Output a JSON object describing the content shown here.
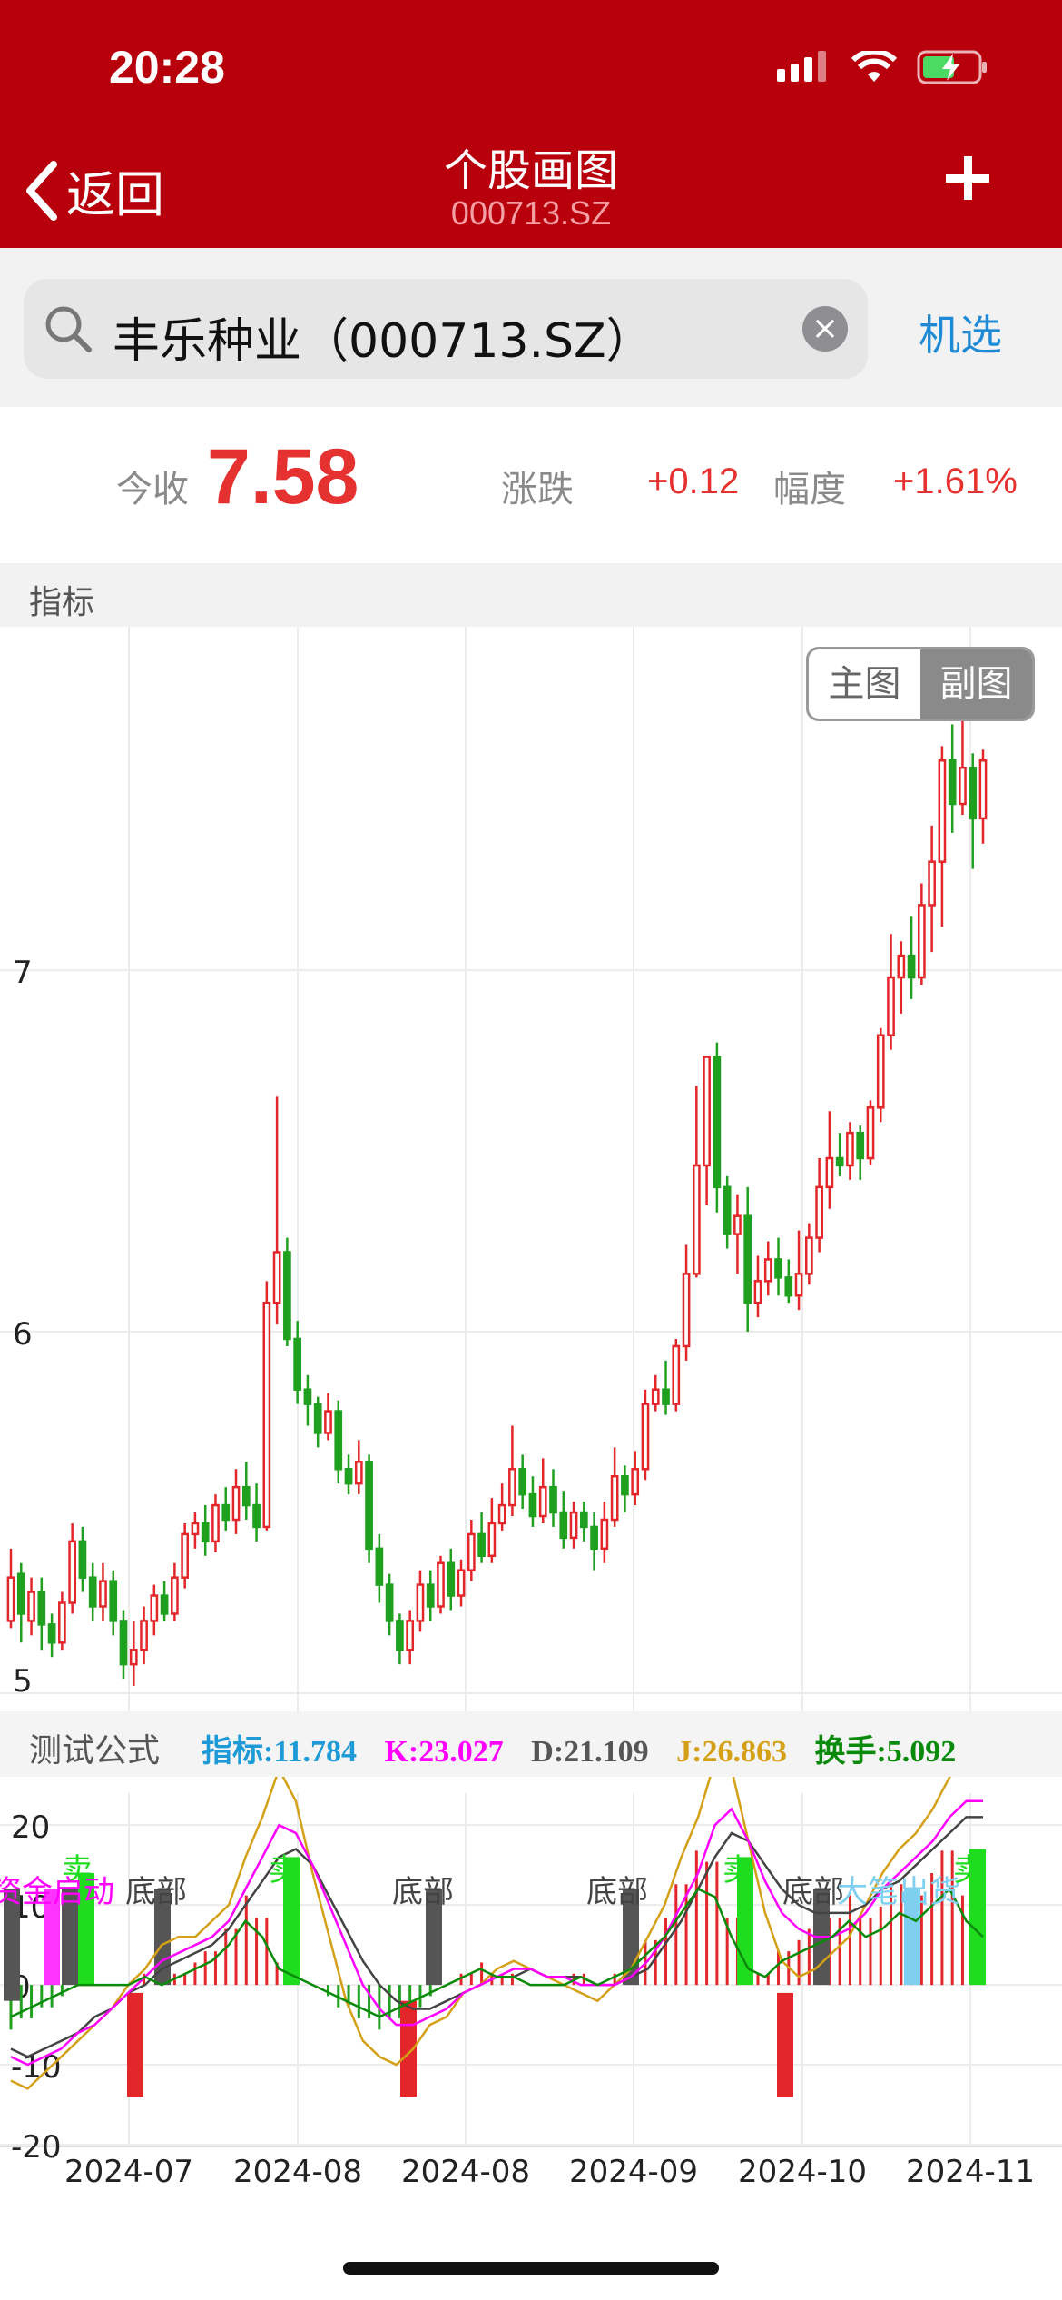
{
  "status": {
    "time": "20:28"
  },
  "nav": {
    "back_label": "返回",
    "title": "个股画图",
    "subtitle": "000713.SZ"
  },
  "search": {
    "value": "丰乐种业（000713.SZ）",
    "clear_icon": "clear-icon",
    "machine_select": "机选"
  },
  "quote": {
    "close_label": "今收",
    "close_value": "7.58",
    "change_label": "涨跌",
    "change_value": "+0.12",
    "pct_label": "幅度",
    "pct_value": "+1.61%"
  },
  "section": {
    "label": "指标"
  },
  "chart_toggle": {
    "main": "主图",
    "sub": "副图"
  },
  "indicator": {
    "title": "测试公式",
    "values": [
      {
        "text": "指标:11.784",
        "color": "#1e9ad6"
      },
      {
        "text": "K:23.027",
        "color": "#ff00ff"
      },
      {
        "text": "D:21.109",
        "color": "#555555"
      },
      {
        "text": "J:26.863",
        "color": "#d4a017"
      },
      {
        "text": "换手:5.092",
        "color": "#0a8a0a"
      }
    ]
  },
  "colors": {
    "up": "#e3262a",
    "down": "#1fa01f",
    "header": "#b8000c"
  },
  "chart_data": [
    {
      "type": "candlestick",
      "y_ticks": [
        "7",
        "6",
        "5"
      ],
      "ylim": [
        5,
        7.95
      ],
      "x_ticks": [
        "2024-07",
        "2024-08",
        "2024-08",
        "2024-09",
        "2024-10",
        "2024-11"
      ],
      "candles": [
        [
          5.2,
          5.32,
          5.4,
          5.18
        ],
        [
          5.33,
          5.22,
          5.36,
          5.14
        ],
        [
          5.2,
          5.28,
          5.32,
          5.16
        ],
        [
          5.28,
          5.19,
          5.32,
          5.12
        ],
        [
          5.19,
          5.14,
          5.22,
          5.1
        ],
        [
          5.14,
          5.25,
          5.28,
          5.12
        ],
        [
          5.25,
          5.42,
          5.47,
          5.22
        ],
        [
          5.42,
          5.32,
          5.46,
          5.28
        ],
        [
          5.32,
          5.24,
          5.36,
          5.2
        ],
        [
          5.24,
          5.31,
          5.36,
          5.2
        ],
        [
          5.31,
          5.2,
          5.34,
          5.16
        ],
        [
          5.2,
          5.08,
          5.23,
          5.04
        ],
        [
          5.08,
          5.12,
          5.2,
          5.02
        ],
        [
          5.12,
          5.2,
          5.24,
          5.08
        ],
        [
          5.2,
          5.27,
          5.3,
          5.16
        ],
        [
          5.27,
          5.22,
          5.31,
          5.2
        ],
        [
          5.22,
          5.32,
          5.36,
          5.2
        ],
        [
          5.32,
          5.44,
          5.47,
          5.29
        ],
        [
          5.44,
          5.47,
          5.5,
          5.4
        ],
        [
          5.47,
          5.42,
          5.52,
          5.38
        ],
        [
          5.42,
          5.52,
          5.55,
          5.39
        ],
        [
          5.52,
          5.48,
          5.57,
          5.45
        ],
        [
          5.48,
          5.57,
          5.62,
          5.44
        ],
        [
          5.57,
          5.52,
          5.64,
          5.48
        ],
        [
          5.52,
          5.46,
          5.58,
          5.42
        ],
        [
          5.46,
          6.08,
          6.14,
          5.45
        ],
        [
          6.08,
          6.22,
          6.65,
          6.02
        ],
        [
          6.22,
          5.98,
          6.26,
          5.96
        ],
        [
          5.98,
          5.84,
          6.03,
          5.8
        ],
        [
          5.84,
          5.8,
          5.88,
          5.74
        ],
        [
          5.8,
          5.72,
          5.82,
          5.68
        ],
        [
          5.72,
          5.78,
          5.83,
          5.7
        ],
        [
          5.78,
          5.62,
          5.81,
          5.58
        ],
        [
          5.62,
          5.58,
          5.66,
          5.55
        ],
        [
          5.58,
          5.64,
          5.7,
          5.55
        ],
        [
          5.64,
          5.4,
          5.66,
          5.36
        ],
        [
          5.4,
          5.3,
          5.44,
          5.25
        ],
        [
          5.3,
          5.2,
          5.33,
          5.16
        ],
        [
          5.2,
          5.12,
          5.22,
          5.08
        ],
        [
          5.12,
          5.2,
          5.23,
          5.08
        ],
        [
          5.2,
          5.3,
          5.34,
          5.17
        ],
        [
          5.3,
          5.24,
          5.34,
          5.2
        ],
        [
          5.24,
          5.36,
          5.38,
          5.22
        ],
        [
          5.36,
          5.27,
          5.4,
          5.23
        ],
        [
          5.27,
          5.34,
          5.37,
          5.24
        ],
        [
          5.34,
          5.44,
          5.48,
          5.31
        ],
        [
          5.44,
          5.38,
          5.5,
          5.36
        ],
        [
          5.38,
          5.47,
          5.54,
          5.36
        ],
        [
          5.47,
          5.52,
          5.58,
          5.45
        ],
        [
          5.52,
          5.62,
          5.74,
          5.49
        ],
        [
          5.62,
          5.55,
          5.66,
          5.51
        ],
        [
          5.55,
          5.49,
          5.6,
          5.46
        ],
        [
          5.49,
          5.57,
          5.65,
          5.47
        ],
        [
          5.57,
          5.5,
          5.62,
          5.46
        ],
        [
          5.5,
          5.43,
          5.56,
          5.4
        ],
        [
          5.43,
          5.5,
          5.53,
          5.4
        ],
        [
          5.5,
          5.46,
          5.53,
          5.42
        ],
        [
          5.46,
          5.4,
          5.5,
          5.34
        ],
        [
          5.4,
          5.48,
          5.53,
          5.36
        ],
        [
          5.48,
          5.6,
          5.68,
          5.46
        ],
        [
          5.6,
          5.55,
          5.63,
          5.5
        ],
        [
          5.55,
          5.62,
          5.67,
          5.52
        ],
        [
          5.62,
          5.8,
          5.84,
          5.59
        ],
        [
          5.8,
          5.84,
          5.88,
          5.78
        ],
        [
          5.84,
          5.8,
          5.92,
          5.77
        ],
        [
          5.8,
          5.96,
          5.98,
          5.78
        ],
        [
          5.96,
          6.16,
          6.24,
          5.92
        ],
        [
          6.16,
          6.46,
          6.68,
          6.15
        ],
        [
          6.46,
          6.76,
          6.76,
          6.35
        ],
        [
          6.76,
          6.4,
          6.8,
          6.33
        ],
        [
          6.4,
          6.27,
          6.43,
          6.23
        ],
        [
          6.27,
          6.32,
          6.38,
          6.16
        ],
        [
          6.32,
          6.08,
          6.4,
          6.0
        ],
        [
          6.08,
          6.14,
          6.21,
          6.04
        ],
        [
          6.14,
          6.2,
          6.25,
          6.1
        ],
        [
          6.2,
          6.15,
          6.26,
          6.1
        ],
        [
          6.15,
          6.1,
          6.2,
          6.08
        ],
        [
          6.1,
          6.16,
          6.28,
          6.06
        ],
        [
          6.16,
          6.26,
          6.3,
          6.13
        ],
        [
          6.26,
          6.4,
          6.48,
          6.22
        ],
        [
          6.4,
          6.48,
          6.61,
          6.34
        ],
        [
          6.48,
          6.46,
          6.55,
          6.43
        ],
        [
          6.46,
          6.55,
          6.58,
          6.42
        ],
        [
          6.55,
          6.48,
          6.57,
          6.42
        ],
        [
          6.48,
          6.62,
          6.64,
          6.46
        ],
        [
          6.62,
          6.82,
          6.84,
          6.58
        ],
        [
          6.82,
          6.98,
          7.1,
          6.78
        ],
        [
          6.98,
          7.04,
          7.08,
          6.88
        ],
        [
          7.04,
          6.98,
          7.15,
          6.92
        ],
        [
          6.98,
          7.18,
          7.24,
          6.96
        ],
        [
          7.18,
          7.3,
          7.4,
          7.05
        ],
        [
          7.3,
          7.58,
          7.62,
          7.12
        ],
        [
          7.58,
          7.46,
          7.68,
          7.38
        ],
        [
          7.46,
          7.56,
          7.78,
          7.43
        ],
        [
          7.56,
          7.42,
          7.6,
          7.28
        ],
        [
          7.42,
          7.58,
          7.61,
          7.35
        ]
      ]
    },
    {
      "type": "indicator",
      "title": "测试公式",
      "y_ticks": [
        "20",
        "10",
        "0",
        "-10",
        "-20"
      ],
      "ylim": [
        -20,
        24
      ],
      "labels": [
        {
          "text": "卖",
          "pos": 0.07,
          "color": "#1fdc1f"
        },
        {
          "text": "资金启动",
          "pos": 0.0,
          "color": "#ff00ff"
        },
        {
          "text": "底部",
          "pos": 0.14,
          "color": "#444444"
        },
        {
          "text": "卖",
          "pos": 0.27,
          "color": "#1fdc1f"
        },
        {
          "text": "底部",
          "pos": 0.41,
          "color": "#444444"
        },
        {
          "text": "底部",
          "pos": 0.6,
          "color": "#444444"
        },
        {
          "text": "卖",
          "pos": 0.72,
          "color": "#1fdc1f"
        },
        {
          "text": "底部",
          "pos": 0.79,
          "color": "#444444"
        },
        {
          "text": "大笔出货",
          "pos": 0.83,
          "color": "#7fd0f0"
        },
        {
          "text": "卖",
          "pos": 0.94,
          "color": "#1fdc1f"
        }
      ],
      "K": [
        -9,
        -10,
        -9,
        -8,
        -6,
        -5,
        -3,
        -1,
        1,
        3,
        4,
        5,
        6,
        8,
        12,
        16,
        20,
        19,
        15,
        10,
        5,
        0,
        -3,
        -5,
        -5,
        -4,
        -3,
        -1,
        0,
        1,
        2,
        2,
        1,
        1,
        0,
        0,
        0,
        1,
        3,
        6,
        10,
        14,
        20,
        22,
        18,
        13,
        9,
        7,
        6,
        6,
        7,
        9,
        12,
        14,
        16,
        18,
        21,
        23,
        23
      ],
      "D": [
        -8,
        -9,
        -8,
        -7,
        -6,
        -4,
        -3,
        -1,
        0,
        2,
        3,
        4,
        5,
        7,
        10,
        13,
        16,
        17,
        15,
        11,
        7,
        3,
        0,
        -2,
        -3,
        -3,
        -2,
        -1,
        0,
        1,
        1,
        2,
        1,
        1,
        1,
        0,
        0,
        1,
        2,
        5,
        8,
        12,
        16,
        19,
        18,
        15,
        12,
        10,
        9,
        9,
        9,
        10,
        12,
        13,
        15,
        17,
        19,
        21,
        21
      ],
      "J": [
        -12,
        -13,
        -11,
        -9,
        -7,
        -5,
        -3,
        0,
        2,
        5,
        6,
        6,
        8,
        10,
        16,
        21,
        27,
        23,
        14,
        6,
        -2,
        -7,
        -9,
        -10,
        -8,
        -5,
        -4,
        -1,
        0,
        2,
        3,
        2,
        1,
        0,
        -1,
        -2,
        0,
        2,
        6,
        10,
        16,
        21,
        28,
        27,
        18,
        9,
        3,
        1,
        2,
        4,
        6,
        10,
        14,
        17,
        19,
        22,
        26,
        28,
        27
      ],
      "indicator_line": [
        -4,
        -3,
        -2,
        -1,
        0,
        0,
        0,
        0,
        1,
        0,
        1,
        2,
        3,
        5,
        8,
        6,
        2,
        1,
        0,
        -1,
        -2,
        -3,
        -4,
        -3,
        -2,
        -1,
        0,
        1,
        2,
        1,
        1,
        0,
        0,
        0,
        1,
        0,
        1,
        2,
        4,
        6,
        9,
        12,
        11,
        6,
        2,
        1,
        3,
        4,
        5,
        6,
        8,
        6,
        7,
        9,
        8,
        10,
        12,
        8,
        6
      ]
    }
  ]
}
